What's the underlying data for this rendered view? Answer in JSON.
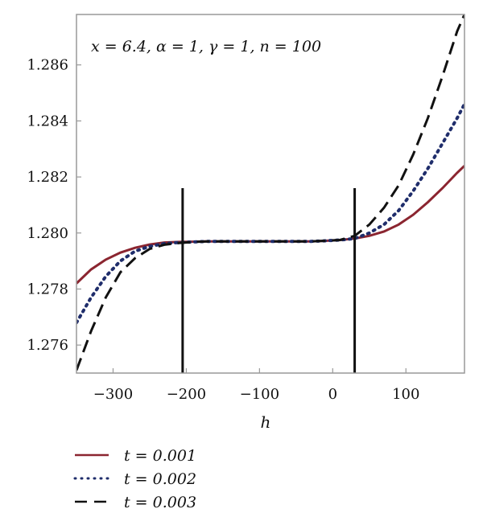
{
  "chart_data": {
    "type": "line",
    "title": "",
    "xlabel": "h",
    "ylabel": "",
    "annotation": "x = 6.4, α = 1, γ = 1, n = 100",
    "xlim": [
      -350,
      180
    ],
    "ylim": [
      1.275,
      1.2878
    ],
    "xticks": [
      -300,
      -200,
      -100,
      0,
      100
    ],
    "xtick_labels": [
      "−300",
      "−200",
      "−100",
      "0",
      "100"
    ],
    "yticks": [
      1.276,
      1.278,
      1.28,
      1.282,
      1.284,
      1.286
    ],
    "ytick_labels": [
      "1.276",
      "1.278",
      "1.280",
      "1.282",
      "1.284",
      "1.286"
    ],
    "grid": false,
    "legend_position": "below",
    "vertical_lines": [
      -205,
      30
    ],
    "vertical_line_range": [
      1.275,
      1.2816
    ],
    "x": [
      -350,
      -330,
      -310,
      -290,
      -270,
      -250,
      -230,
      -210,
      -190,
      -170,
      -150,
      -130,
      -110,
      -90,
      -70,
      -50,
      -30,
      -10,
      10,
      30,
      50,
      70,
      90,
      110,
      130,
      150,
      170,
      180
    ],
    "series": [
      {
        "name": "t = 0.001",
        "color": "#8b2530",
        "dash": "solid",
        "values": [
          1.2782,
          1.2787,
          1.27905,
          1.2793,
          1.27947,
          1.27959,
          1.27966,
          1.27968,
          1.27969,
          1.2797,
          1.2797,
          1.2797,
          1.2797,
          1.2797,
          1.2797,
          1.2797,
          1.2797,
          1.27972,
          1.27975,
          1.2798,
          1.2799,
          1.28005,
          1.2803,
          1.28065,
          1.2811,
          1.2816,
          1.28215,
          1.2824
        ]
      },
      {
        "name": "t = 0.002",
        "color": "#1f2d6b",
        "dash": "dotted",
        "values": [
          1.2768,
          1.2777,
          1.27845,
          1.279,
          1.27935,
          1.27952,
          1.27962,
          1.27966,
          1.27968,
          1.2797,
          1.2797,
          1.2797,
          1.2797,
          1.2797,
          1.2797,
          1.2797,
          1.2797,
          1.27972,
          1.27975,
          1.2798,
          1.28,
          1.2803,
          1.2808,
          1.2815,
          1.2823,
          1.2832,
          1.2841,
          1.2846
        ]
      },
      {
        "name": "t = 0.003",
        "color": "#111111",
        "dash": "dashed",
        "values": [
          1.2751,
          1.2765,
          1.2777,
          1.2786,
          1.2791,
          1.27943,
          1.27958,
          1.27964,
          1.27968,
          1.2797,
          1.2797,
          1.2797,
          1.2797,
          1.2797,
          1.2797,
          1.2797,
          1.2797,
          1.27972,
          1.27975,
          1.2799,
          1.2803,
          1.2809,
          1.2817,
          1.2828,
          1.2841,
          1.2856,
          1.2872,
          1.2878
        ]
      }
    ]
  }
}
